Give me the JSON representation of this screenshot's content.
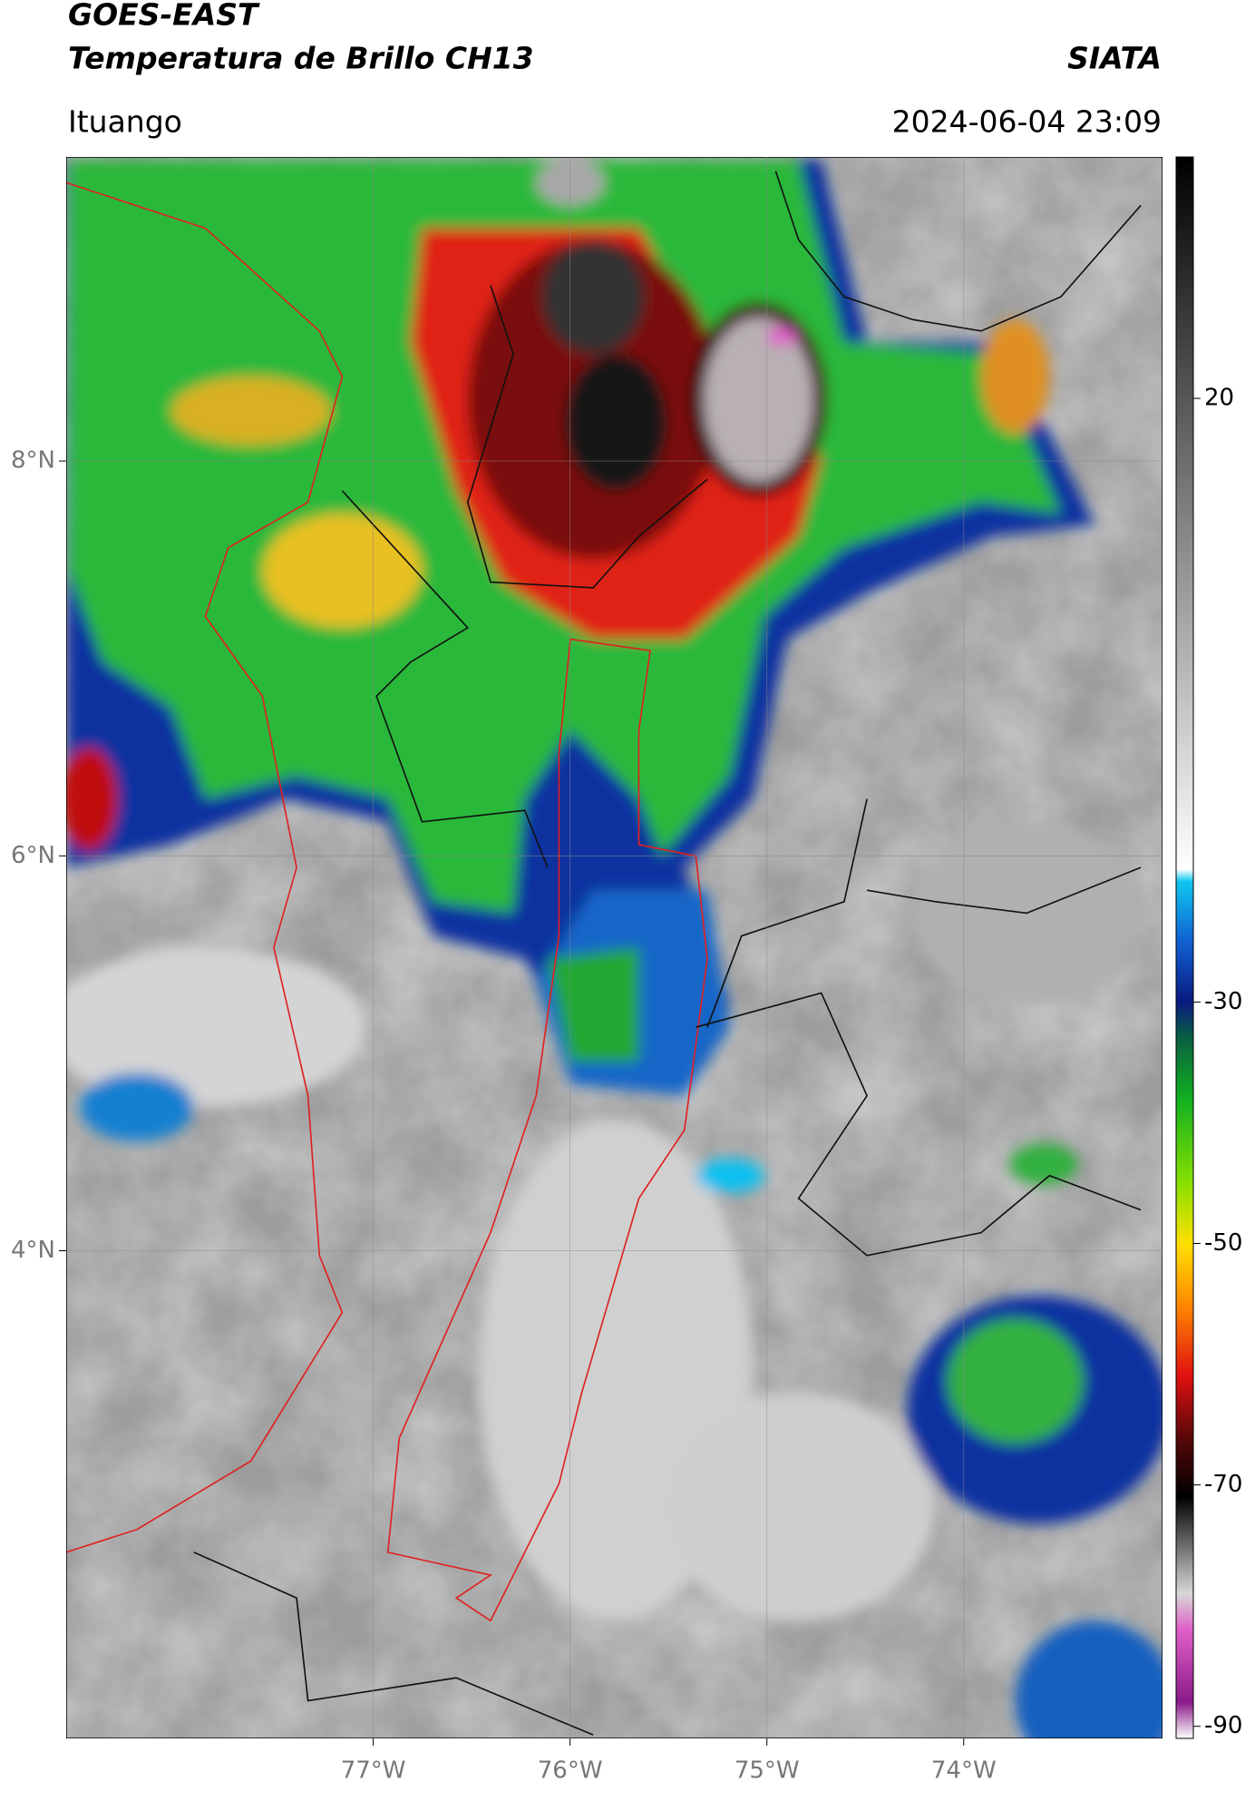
{
  "header": {
    "title": "GOES-EAST",
    "subtitle": "Temperatura de Brillo CH13",
    "source": "SIATA",
    "location": "Ituango",
    "datetime": "2024-06-04 23:09"
  },
  "map": {
    "lon_range": [
      -78.56,
      -72.99
    ],
    "lat_range": [
      1.53,
      9.54
    ],
    "lon_ticks": [
      {
        "value": -77,
        "label": "77°W"
      },
      {
        "value": -76,
        "label": "76°W"
      },
      {
        "value": -75,
        "label": "75°W"
      },
      {
        "value": -74,
        "label": "74°W"
      }
    ],
    "lat_ticks": [
      {
        "value": 8,
        "label": "8°N"
      },
      {
        "value": 6,
        "label": "6°N"
      },
      {
        "value": 4,
        "label": "4°N"
      }
    ],
    "grid": true
  },
  "colorbar": {
    "clim": [
      -91,
      40
    ],
    "ticks": [
      20,
      -30,
      -50,
      -70,
      -90
    ],
    "colormap": [
      [
        -91,
        "#ffffff"
      ],
      [
        -88,
        "#8a1a8a"
      ],
      [
        -82,
        "#e060c8"
      ],
      [
        -79,
        "#d8d8d8"
      ],
      [
        -71,
        "#000000"
      ],
      [
        -66,
        "#5a0808"
      ],
      [
        -61,
        "#e01010"
      ],
      [
        -55,
        "#ff8a00"
      ],
      [
        -50,
        "#ffe000"
      ],
      [
        -45,
        "#88e000"
      ],
      [
        -38,
        "#10b020"
      ],
      [
        -33,
        "#0a6040"
      ],
      [
        -30,
        "#0a1a80"
      ],
      [
        -25,
        "#1060d0"
      ],
      [
        -20,
        "#10c8f0"
      ],
      [
        -19,
        "#ffffff"
      ],
      [
        40,
        "#000000"
      ]
    ]
  }
}
